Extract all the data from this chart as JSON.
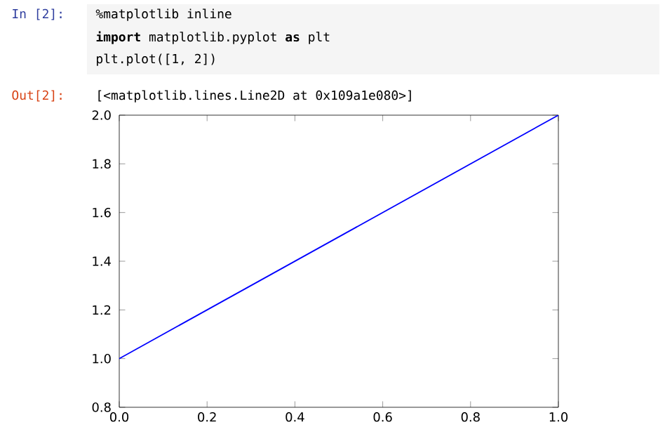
{
  "chart_data": {
    "type": "line",
    "annotations": [
      "In [2]:",
      "%matplotlib inline",
      "**import** matplotlib.pyplot **as** plt",
      "plt.plot([1, 2])",
      "Out[2]:",
      "[<matplotlib.lines.Line2D at 0x109a1e080>]"
    ],
    "series": [
      {
        "color": "#0000ff",
        "x": [
          0,
          1
        ],
        "values": [
          1,
          2
        ]
      }
    ],
    "xlim": [
      0,
      1
    ],
    "ylim": [
      0.8,
      2.0
    ],
    "xticks": [
      {
        "value": 0,
        "label": "0.0"
      },
      {
        "value": 0.2,
        "label": "0.2"
      },
      {
        "value": 0.4,
        "label": "0.4"
      },
      {
        "value": 0.6,
        "label": "0.6"
      },
      {
        "value": 0.8,
        "label": "0.8"
      },
      {
        "value": 1,
        "label": "1.0"
      }
    ],
    "yticks": [
      {
        "value": 0.8,
        "label": "0.8"
      },
      {
        "value": 1.0,
        "label": "1.0"
      },
      {
        "value": 1.2,
        "label": "1.2"
      },
      {
        "value": 1.4,
        "label": "1.4"
      },
      {
        "value": 1.6,
        "label": "1.6"
      },
      {
        "value": 1.8,
        "label": "1.8"
      },
      {
        "value": 2.0,
        "label": "2.0"
      }
    ],
    "marker": "none",
    "line_style": "solid"
  }
}
